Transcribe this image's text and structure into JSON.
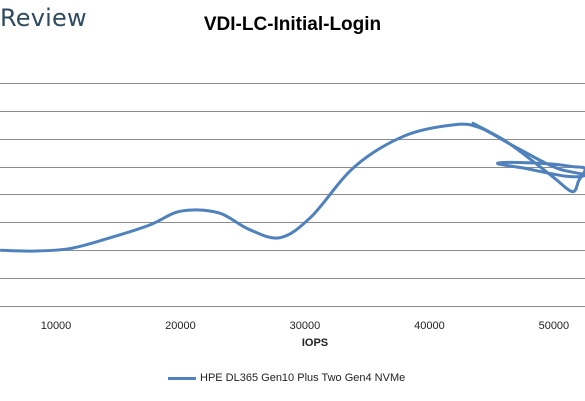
{
  "logo": {
    "text": "Review"
  },
  "chart_data": {
    "type": "line",
    "title": "VDI-LC-Initial-Login",
    "xlabel": "IOPS",
    "ylabel": "",
    "xlim": [
      5500,
      52500
    ],
    "ylim": [
      0,
      9
    ],
    "x_ticks": [
      "10000",
      "20000",
      "30000",
      "40000",
      "50000"
    ],
    "x_tick_values": [
      10000,
      20000,
      30000,
      40000,
      50000
    ],
    "y_gridlines": [
      1,
      2,
      3,
      4,
      5,
      6,
      7,
      8
    ],
    "grid": true,
    "legend_position": "bottom",
    "series": [
      {
        "name": "HPE DL365 Gen10 Plus Two Gen4 NVMe",
        "color": "#4f81bd",
        "points": [
          [
            5600,
            2.0
          ],
          [
            8000,
            1.97
          ],
          [
            11000,
            2.05
          ],
          [
            14000,
            2.4
          ],
          [
            17500,
            2.9
          ],
          [
            20000,
            3.4
          ],
          [
            23000,
            3.35
          ],
          [
            25500,
            2.75
          ],
          [
            28000,
            2.45
          ],
          [
            30500,
            3.2
          ],
          [
            34000,
            5.0
          ],
          [
            38000,
            6.1
          ],
          [
            42000,
            6.5
          ],
          [
            44000,
            6.4
          ],
          [
            46500,
            5.8
          ],
          [
            49000,
            5.2
          ],
          [
            50500,
            4.9
          ],
          [
            52500,
            4.7
          ],
          [
            51000,
            4.65
          ],
          [
            47500,
            4.95
          ],
          [
            45500,
            5.1
          ],
          [
            46500,
            5.15
          ],
          [
            49500,
            5.1
          ],
          [
            51500,
            5.0
          ],
          [
            52500,
            4.92
          ],
          [
            52000,
            4.5
          ],
          [
            51500,
            4.1
          ],
          [
            50000,
            4.6
          ],
          [
            48000,
            5.3
          ],
          [
            46000,
            5.95
          ],
          [
            43500,
            6.55
          ]
        ]
      }
    ]
  }
}
